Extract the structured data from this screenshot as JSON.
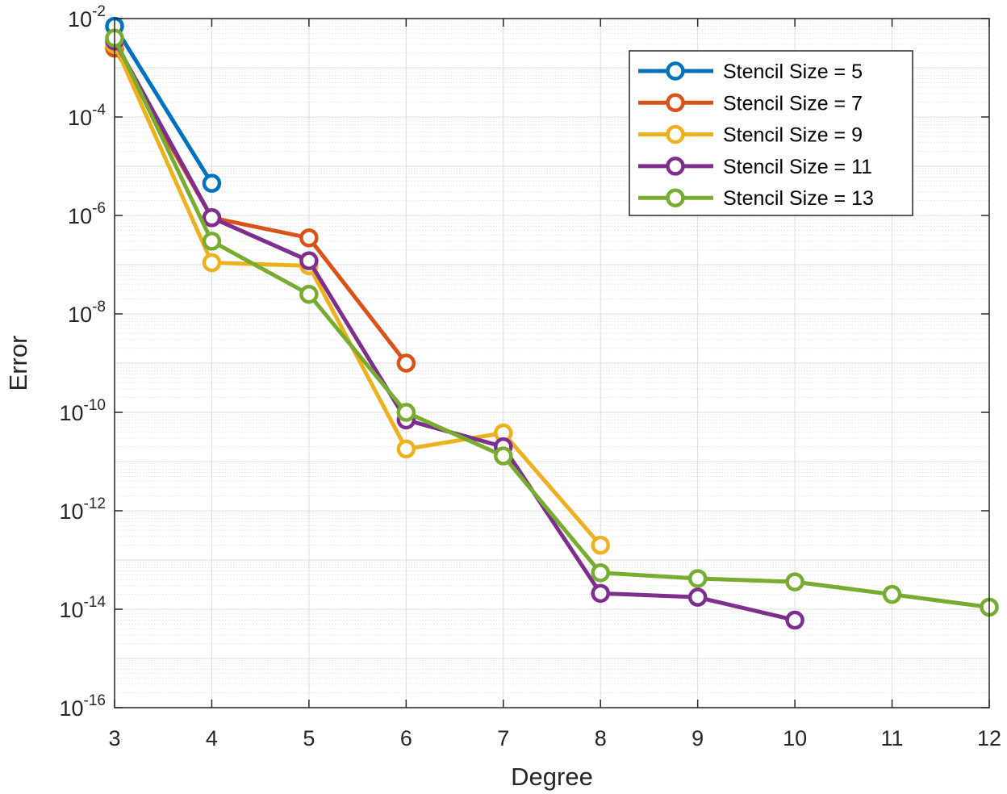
{
  "chart_data": {
    "type": "line",
    "xlabel": "Degree",
    "ylabel": "Error",
    "xlim": [
      3,
      12
    ],
    "ylim": [
      1e-16,
      0.01
    ],
    "yscale": "log",
    "xticks": [
      "3",
      "4",
      "5",
      "6",
      "7",
      "8",
      "9",
      "10",
      "11",
      "12"
    ],
    "yticks": [
      {
        "base": "10",
        "exp": "-2",
        "value": 0.01
      },
      {
        "base": "10",
        "exp": "-4",
        "value": 0.0001
      },
      {
        "base": "10",
        "exp": "-6",
        "value": 1e-06
      },
      {
        "base": "10",
        "exp": "-8",
        "value": 1e-08
      },
      {
        "base": "10",
        "exp": "-10",
        "value": 1e-10
      },
      {
        "base": "10",
        "exp": "-12",
        "value": 1e-12
      },
      {
        "base": "10",
        "exp": "-14",
        "value": 1e-14
      },
      {
        "base": "10",
        "exp": "-16",
        "value": 1e-16
      }
    ],
    "grid": true,
    "minor_grid": true,
    "legend_position": "top-right",
    "series": [
      {
        "name": "Stencil Size = 5",
        "color": "#0072BD",
        "x": [
          3,
          4
        ],
        "y": [
          0.007,
          4.5e-06
        ]
      },
      {
        "name": "Stencil Size = 7",
        "color": "#D95319",
        "x": [
          3,
          4,
          5,
          6
        ],
        "y": [
          0.0025,
          9e-07,
          3.5e-07,
          1e-09
        ]
      },
      {
        "name": "Stencil Size = 9",
        "color": "#EDB120",
        "x": [
          3,
          4,
          5,
          6,
          7,
          8
        ],
        "y": [
          0.003,
          1.1e-07,
          9.5e-08,
          1.8e-11,
          3.8e-11,
          2e-13
        ]
      },
      {
        "name": "Stencil Size = 11",
        "color": "#7E2F8E",
        "x": [
          3,
          4,
          5,
          6,
          7,
          8,
          9,
          10
        ],
        "y": [
          0.0035,
          9e-07,
          1.2e-07,
          7e-11,
          2e-11,
          2.1e-14,
          1.75e-14,
          6e-15
        ]
      },
      {
        "name": "Stencil Size = 13",
        "color": "#77AC30",
        "x": [
          3,
          4,
          5,
          6,
          7,
          8,
          9,
          10,
          11,
          12
        ],
        "y": [
          0.004,
          3e-07,
          2.5e-08,
          1e-10,
          1.3e-11,
          5.5e-14,
          4.2e-14,
          3.6e-14,
          2e-14,
          1.1e-14
        ]
      }
    ]
  }
}
